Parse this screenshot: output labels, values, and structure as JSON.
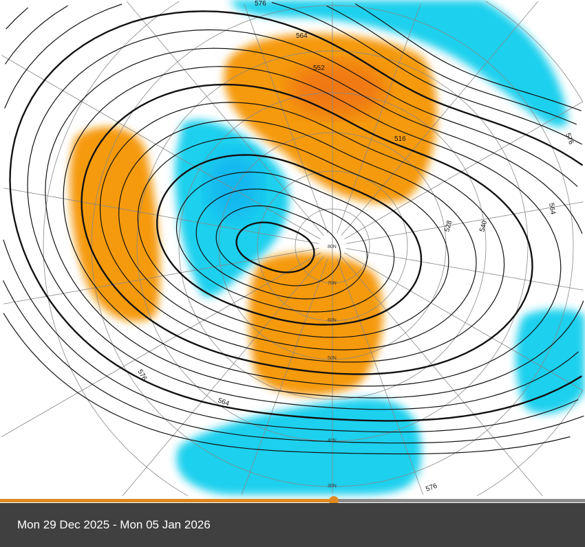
{
  "map": {
    "contour_labels": [
      "576",
      "564",
      "552",
      "516",
      "528",
      "540",
      "564",
      "576",
      "576",
      "564",
      "576"
    ],
    "latitude_labels": [
      "80N",
      "70N",
      "60N",
      "50N",
      "40N",
      "30N"
    ],
    "colors": {
      "positive_anomaly": "#f59a0a",
      "strong_positive": "#ee6a12",
      "negative_anomaly": "#1ad0ee",
      "strong_negative": "#0aa8f0"
    }
  },
  "timeline": {
    "progress_percent": 57
  },
  "footer": {
    "date_range": "Mon 29 Dec 2025 - Mon 05 Jan 2026"
  }
}
